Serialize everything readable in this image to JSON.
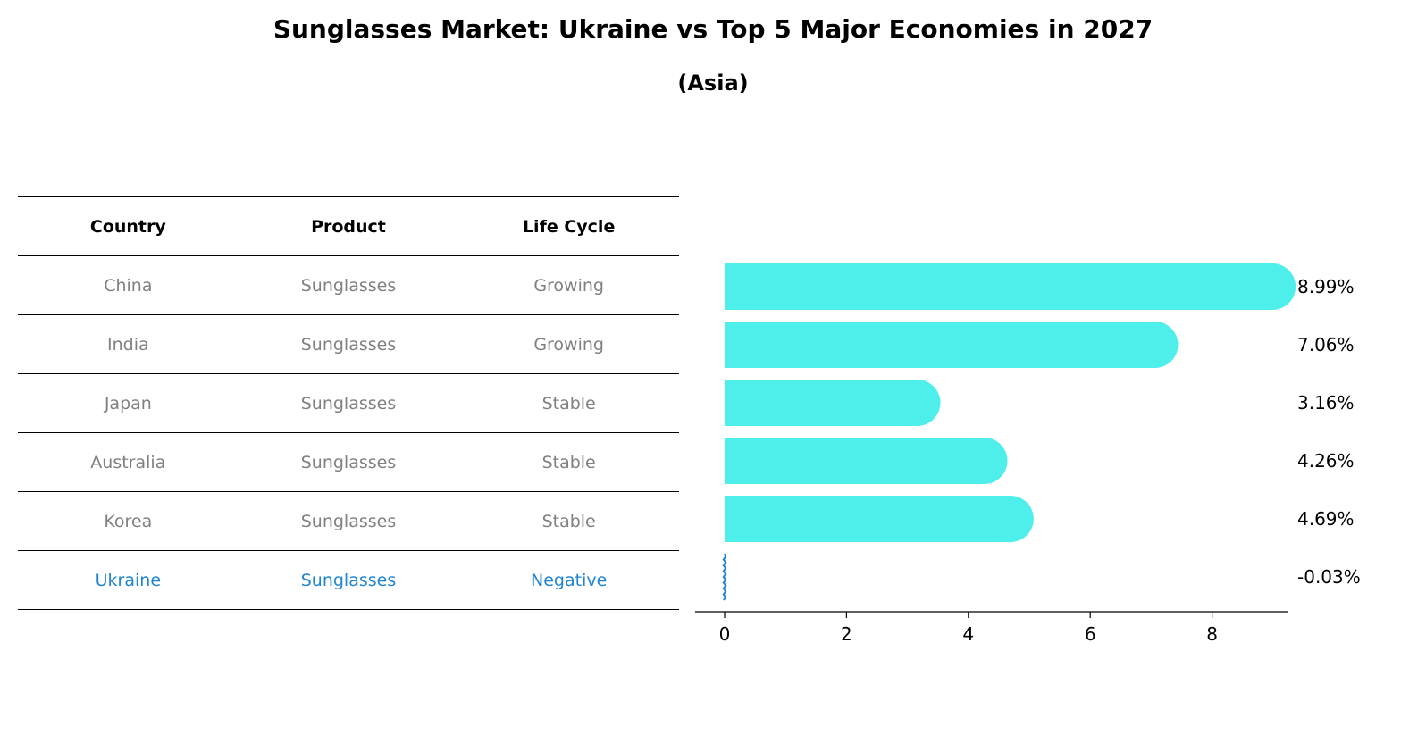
{
  "chart_data": [
    {
      "type": "table",
      "title": "Sunglasses Market: Ukraine vs Top 5 Major Economies in 2027",
      "subtitle": "(Asia)",
      "columns": [
        "Country",
        "Product",
        "Life Cycle"
      ],
      "rows": [
        [
          "China",
          "Sunglasses",
          "Growing"
        ],
        [
          "India",
          "Sunglasses",
          "Growing"
        ],
        [
          "Japan",
          "Sunglasses",
          "Stable"
        ],
        [
          "Australia",
          "Sunglasses",
          "Stable"
        ],
        [
          "Korea",
          "Sunglasses",
          "Stable"
        ],
        [
          "Ukraine",
          "Sunglasses",
          "Negative"
        ]
      ],
      "highlight_row": 5
    },
    {
      "type": "bar",
      "orientation": "horizontal",
      "categories": [
        "China",
        "India",
        "Japan",
        "Australia",
        "Korea",
        "Ukraine"
      ],
      "values": [
        8.99,
        7.06,
        3.16,
        4.26,
        4.69,
        -0.03
      ],
      "value_labels": [
        "8.99%",
        "7.06%",
        "3.16%",
        "4.26%",
        "4.69%",
        "-0.03%"
      ],
      "xlim": [
        -0.5,
        9.5
      ],
      "xticks": [
        0,
        2,
        4,
        6,
        8
      ],
      "grid": false,
      "bar_color": "#4eeeea",
      "highlight_color": "#1f84d2"
    }
  ]
}
